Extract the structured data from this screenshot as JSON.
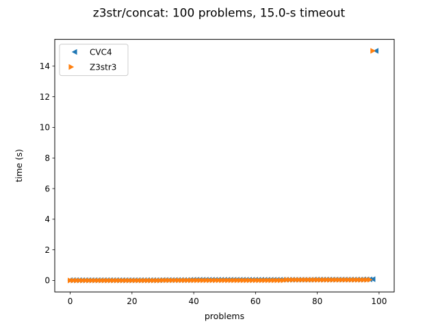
{
  "chart_data": {
    "type": "scatter",
    "title": "z3str/concat: 100 problems, 15.0-s timeout",
    "xlabel": "problems",
    "ylabel": "time (s)",
    "xlim": [
      -5.0,
      104.9
    ],
    "ylim": [
      -0.75,
      15.75
    ],
    "xticks": [
      0,
      20,
      40,
      60,
      80,
      100
    ],
    "yticks": [
      0,
      2,
      4,
      6,
      8,
      10,
      12,
      14
    ],
    "grid": false,
    "legend_position": "top-left",
    "series": [
      {
        "name": "CVC4",
        "marker": "triangle-left",
        "color": "#1f77b4",
        "x_range": [
          0,
          99
        ],
        "values": [
          0.02,
          0.02,
          0.02,
          0.02,
          0.02,
          0.02,
          0.02,
          0.02,
          0.02,
          0.02,
          0.02,
          0.02,
          0.02,
          0.02,
          0.02,
          0.02,
          0.02,
          0.02,
          0.02,
          0.02,
          0.02,
          0.02,
          0.02,
          0.02,
          0.02,
          0.02,
          0.02,
          0.02,
          0.02,
          0.02,
          0.03,
          0.03,
          0.03,
          0.03,
          0.03,
          0.03,
          0.03,
          0.03,
          0.03,
          0.04,
          0.05,
          0.05,
          0.05,
          0.05,
          0.05,
          0.05,
          0.05,
          0.05,
          0.05,
          0.05,
          0.05,
          0.05,
          0.05,
          0.05,
          0.05,
          0.05,
          0.05,
          0.05,
          0.05,
          0.05,
          0.05,
          0.05,
          0.05,
          0.05,
          0.05,
          0.05,
          0.05,
          0.05,
          0.05,
          0.05,
          0.05,
          0.05,
          0.05,
          0.05,
          0.05,
          0.05,
          0.05,
          0.05,
          0.05,
          0.06,
          0.06,
          0.06,
          0.06,
          0.06,
          0.06,
          0.06,
          0.06,
          0.06,
          0.06,
          0.06,
          0.06,
          0.06,
          0.06,
          0.06,
          0.06,
          0.07,
          0.07,
          0.07,
          0.08,
          15.0
        ]
      },
      {
        "name": "Z3str3",
        "marker": "triangle-right",
        "color": "#ff7f0e",
        "x_range": [
          0,
          98
        ],
        "values": [
          0.0,
          0.0,
          0.0,
          0.0,
          0.0,
          0.0,
          0.0,
          0.0,
          0.0,
          0.0,
          0.0,
          0.0,
          0.0,
          0.0,
          0.0,
          0.0,
          0.0,
          0.0,
          0.0,
          0.0,
          0.0,
          0.0,
          0.0,
          0.0,
          0.0,
          0.0,
          0.0,
          0.0,
          0.0,
          0.0,
          0.01,
          0.01,
          0.01,
          0.01,
          0.01,
          0.01,
          0.01,
          0.01,
          0.01,
          0.01,
          0.01,
          0.01,
          0.01,
          0.01,
          0.01,
          0.01,
          0.01,
          0.01,
          0.01,
          0.01,
          0.01,
          0.01,
          0.01,
          0.01,
          0.01,
          0.01,
          0.01,
          0.01,
          0.01,
          0.01,
          0.01,
          0.01,
          0.01,
          0.01,
          0.01,
          0.01,
          0.01,
          0.01,
          0.01,
          0.01,
          0.04,
          0.04,
          0.04,
          0.04,
          0.04,
          0.04,
          0.04,
          0.04,
          0.04,
          0.04,
          0.04,
          0.04,
          0.04,
          0.04,
          0.04,
          0.04,
          0.04,
          0.04,
          0.04,
          0.04,
          0.04,
          0.04,
          0.04,
          0.04,
          0.04,
          0.04,
          0.04,
          0.05,
          15.0
        ]
      }
    ]
  }
}
